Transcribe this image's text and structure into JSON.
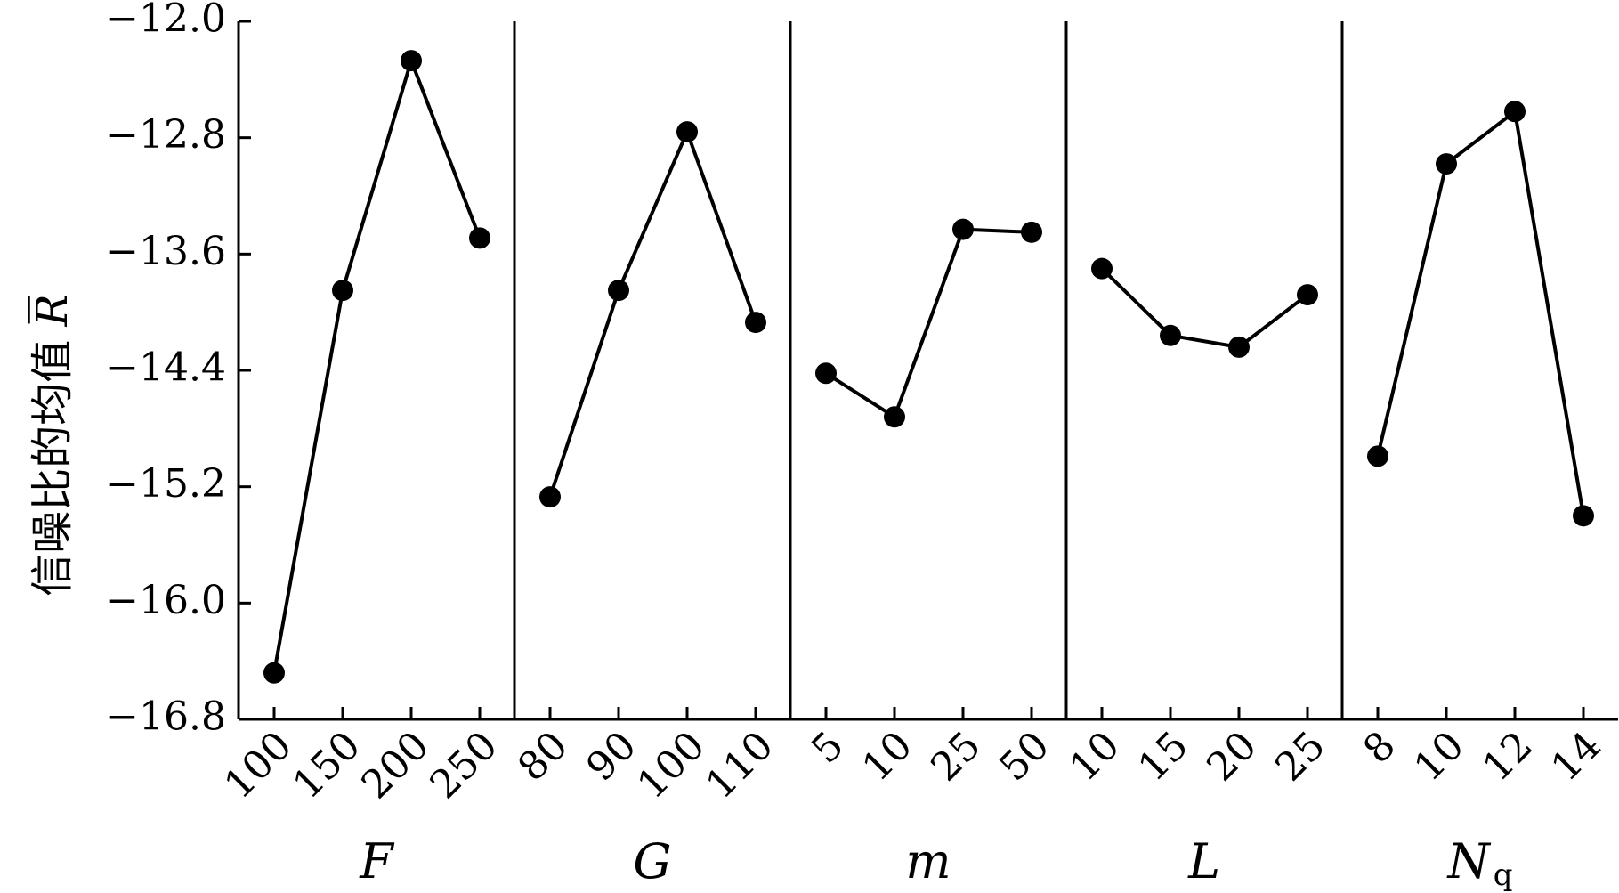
{
  "chart_data": {
    "type": "line",
    "ylabel": "信噪比的均值 R",
    "ylabel_main": "信噪比的均值 ",
    "ylabel_symbol": "R",
    "ylim": [
      -16.8,
      -12.0
    ],
    "yticks": [
      -12.0,
      -12.8,
      -13.6,
      -14.4,
      -15.2,
      -16.0,
      -16.8
    ],
    "ytick_labels": [
      "−12.0",
      "−12.8",
      "−13.6",
      "−14.4",
      "−15.2",
      "−16.0",
      "−16.8"
    ],
    "grid": false,
    "legend": "none",
    "panels": [
      {
        "xlabel": "F",
        "subscript": "",
        "categories": [
          "100",
          "150",
          "200",
          "250"
        ],
        "values": [
          -16.48,
          -13.85,
          -12.27,
          -13.49
        ]
      },
      {
        "xlabel": "G",
        "subscript": "",
        "categories": [
          "80",
          "90",
          "100",
          "110"
        ],
        "values": [
          -15.27,
          -13.85,
          -12.76,
          -14.07
        ]
      },
      {
        "xlabel": "m",
        "subscript": "",
        "categories": [
          "5",
          "10",
          "25",
          "50"
        ],
        "values": [
          -14.42,
          -14.72,
          -13.43,
          -13.45
        ]
      },
      {
        "xlabel": "L",
        "subscript": "",
        "categories": [
          "10",
          "15",
          "20",
          "25"
        ],
        "values": [
          -13.7,
          -14.16,
          -14.24,
          -13.88
        ]
      },
      {
        "xlabel": "N",
        "subscript": "q",
        "categories": [
          "8",
          "10",
          "12",
          "14"
        ],
        "values": [
          -14.99,
          -12.98,
          -12.62,
          -15.4
        ]
      }
    ]
  }
}
